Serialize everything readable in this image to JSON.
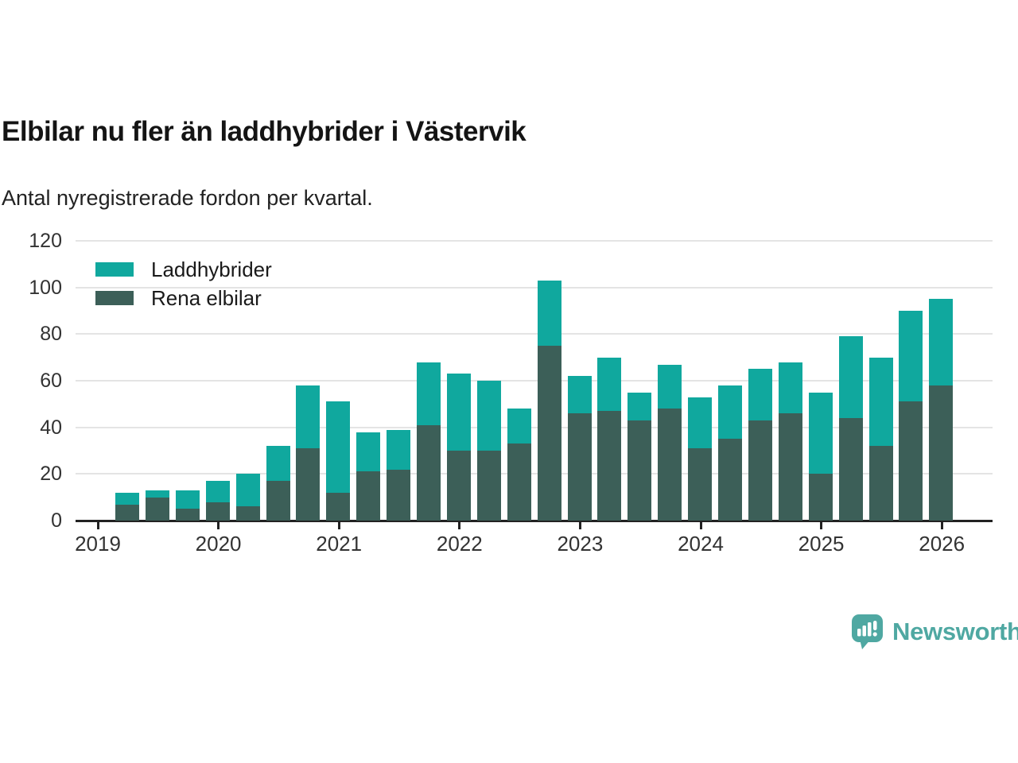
{
  "title": "Elbilar nu fler än laddhybrider i Västervik",
  "subtitle": "Antal nyregistrerade fordon per kvartal.",
  "legend": [
    {
      "label": "Laddhybrider",
      "color": "#10a89e"
    },
    {
      "label": "Rena elbilar",
      "color": "#3c5f58"
    }
  ],
  "footer": {
    "brand": "Newsworthy",
    "brand_color": "#4fa8a2",
    "logo_icon": "bar-chart-speech-bubble"
  },
  "chart_data": {
    "type": "bar",
    "stacked": true,
    "title": "Elbilar nu fler än laddhybrider i Västervik",
    "xlabel": "",
    "ylabel": "",
    "ylim": [
      0,
      120
    ],
    "yticks": [
      0,
      20,
      40,
      60,
      80,
      100,
      120
    ],
    "grid": "horizontal",
    "legend_position": "top-left",
    "x": [
      "2019 Q2",
      "2019 Q3",
      "2019 Q4",
      "2020 Q1",
      "2020 Q2",
      "2020 Q3",
      "2020 Q4",
      "2021 Q1",
      "2021 Q2",
      "2021 Q3",
      "2021 Q4",
      "2022 Q1",
      "2022 Q2",
      "2022 Q3",
      "2022 Q4",
      "2023 Q1",
      "2023 Q2",
      "2023 Q3",
      "2023 Q4",
      "2024 Q1",
      "2024 Q2",
      "2024 Q3",
      "2024 Q4",
      "2025 Q1",
      "2025 Q2",
      "2025 Q3",
      "2025 Q4",
      "2026 Q1"
    ],
    "x_year_ticks": [
      "2019",
      "2020",
      "2021",
      "2022",
      "2023",
      "2024",
      "2025",
      "2026"
    ],
    "series": [
      {
        "name": "Rena elbilar",
        "color": "#3c5f58",
        "values": [
          7,
          10,
          5,
          8,
          6,
          17,
          31,
          12,
          21,
          22,
          41,
          30,
          30,
          33,
          75,
          46,
          47,
          43,
          48,
          31,
          35,
          43,
          46,
          20,
          44,
          32,
          51,
          58
        ]
      },
      {
        "name": "Laddhybrider",
        "color": "#10a89e",
        "values": [
          5,
          3,
          8,
          9,
          14,
          15,
          27,
          39,
          17,
          17,
          27,
          33,
          30,
          15,
          28,
          16,
          23,
          12,
          19,
          22,
          23,
          22,
          22,
          35,
          35,
          38,
          39,
          37
        ]
      }
    ]
  }
}
